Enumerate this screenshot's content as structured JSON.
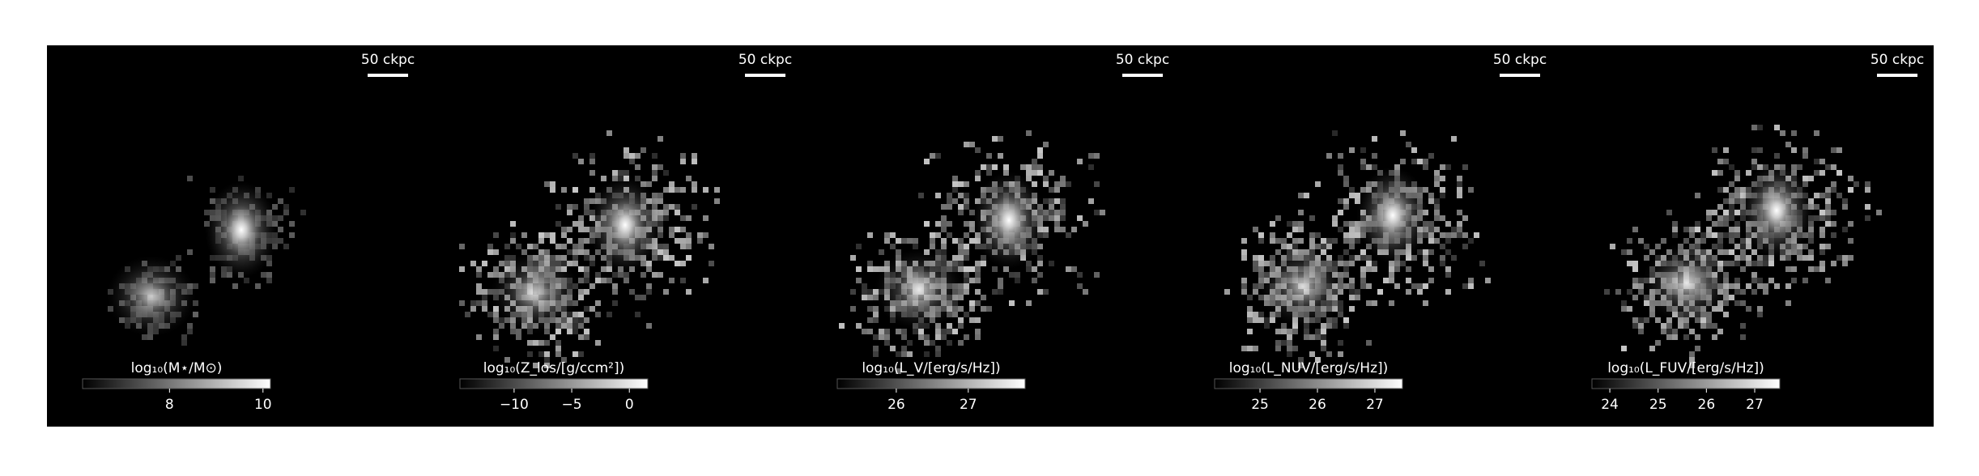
{
  "panels": [
    {
      "scalebar": "50 ckpc",
      "colorbar": {
        "label": "log₁₀(M⋆/M⊙)",
        "lim": [
          6.14,
          10.16
        ],
        "ticks": [
          8,
          10
        ]
      }
    },
    {
      "scalebar": "50 ckpc",
      "colorbar": {
        "label": "log₁₀(Z_los/[g/ccm²])",
        "lim": [
          -14.7,
          1.6
        ],
        "ticks": [
          {
            "value": -10,
            "label": "−10"
          },
          {
            "value": -5,
            "label": "−5"
          },
          0
        ]
      }
    },
    {
      "scalebar": "50 ckpc",
      "colorbar": {
        "label": "log₁₀(L_V/[erg/s/Hz])",
        "lim": [
          25.18,
          27.79
        ],
        "ticks": [
          26,
          27
        ]
      }
    },
    {
      "scalebar": "50 ckpc",
      "colorbar": {
        "label": "log₁₀(L_NUV/[erg/s/Hz])",
        "lim": [
          24.21,
          27.48
        ],
        "ticks": [
          25,
          26,
          27
        ]
      }
    },
    {
      "scalebar": "50 ckpc",
      "colorbar": {
        "label": "log₁₀(L_FUV/[erg/s/Hz])",
        "lim": [
          23.63,
          27.52
        ],
        "ticks": [
          24,
          25,
          26,
          27
        ]
      }
    }
  ]
}
